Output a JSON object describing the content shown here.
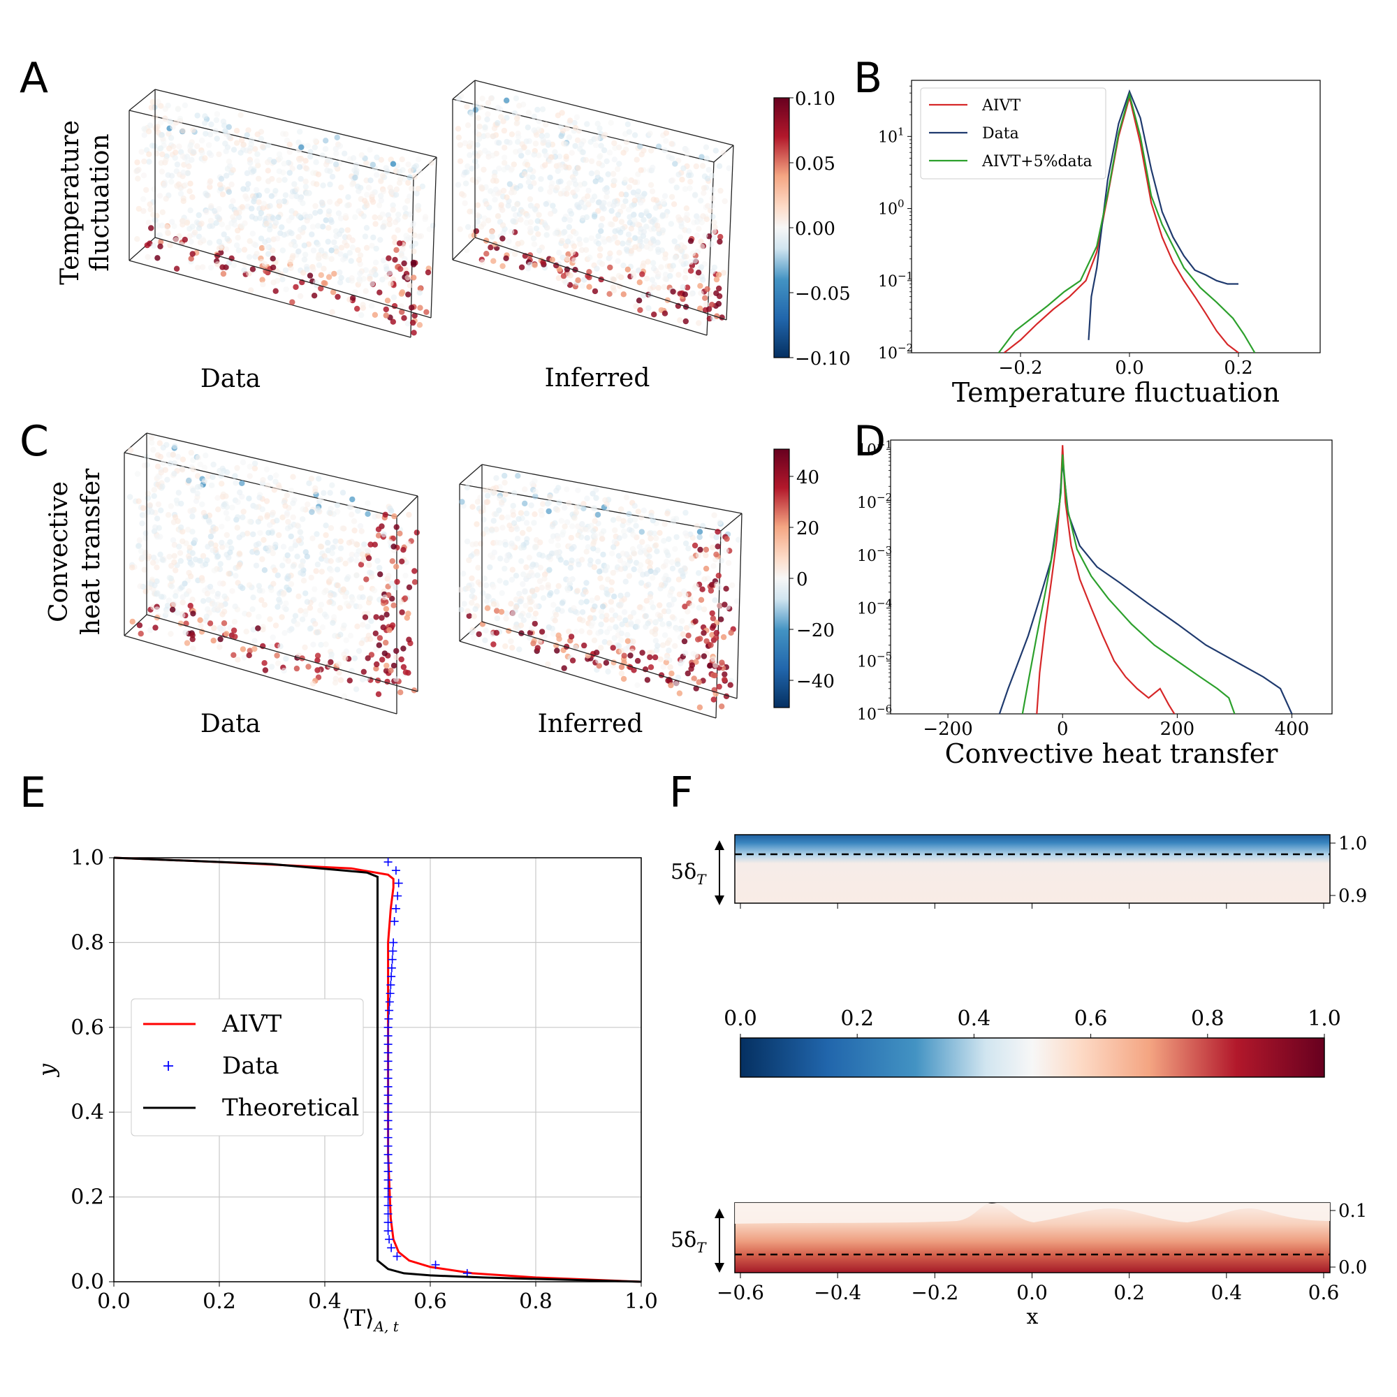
{
  "panels": {
    "a": "A",
    "b": "B",
    "c": "C",
    "d": "D",
    "e": "E",
    "f": "F"
  },
  "panel_A": {
    "row_label_1": "Temperature",
    "row_label_2": "fluctuation",
    "left_caption": "Data",
    "right_caption": "Inferred",
    "colorbar_ticks": [
      "0.10",
      "0.05",
      "0.00",
      "−0.05",
      "−0.10"
    ]
  },
  "panel_C": {
    "row_label_1": "Convective",
    "row_label_2": "heat transfer",
    "left_caption": "Data",
    "right_caption": "Inferred",
    "colorbar_ticks": [
      "40",
      "20",
      "0",
      "−20",
      "−40"
    ]
  },
  "panel_F": {
    "delta_label": "5δ",
    "delta_sub": "T",
    "top_right_ticks": [
      "1.0",
      "0.9"
    ],
    "bottom_right_ticks": [
      "0.1",
      "0.0"
    ],
    "colorbar_ticks": [
      "0.0",
      "0.2",
      "0.4",
      "0.6",
      "0.8",
      "1.0"
    ],
    "x_ticks": [
      "−0.6",
      "−0.4",
      "−0.2",
      "0.0",
      "0.2",
      "0.4",
      "0.6"
    ],
    "xlabel": "x"
  },
  "colors": {
    "aivt": "#d62728",
    "data": "#1f3a6e",
    "aivt5": "#2ca02c",
    "e_aivt": "#ff0000",
    "e_data": "#0000ff",
    "e_theory": "#000000"
  },
  "chart_data": [
    {
      "id": "B",
      "type": "line",
      "xlabel": "Temperature fluctuation",
      "ylabel": "",
      "yscale": "log",
      "xlim": [
        -0.4,
        0.35
      ],
      "ylim": [
        0.01,
        60
      ],
      "x_ticks": [
        -0.2,
        0.0,
        0.2
      ],
      "x_tick_labels": [
        "−0.2",
        "0.0",
        "0.2"
      ],
      "y_ticks": [
        0.01,
        0.1,
        1,
        10
      ],
      "y_tick_base": [
        "10",
        "10",
        "10",
        "10"
      ],
      "y_tick_exp": [
        "−2",
        "−1",
        "0",
        "1"
      ],
      "legend": [
        "AIVT",
        "Data",
        "AIVT+5%data"
      ],
      "series": [
        {
          "name": "AIVT",
          "x": [
            -0.23,
            -0.2,
            -0.17,
            -0.14,
            -0.11,
            -0.08,
            -0.06,
            -0.04,
            -0.02,
            0.0,
            0.02,
            0.04,
            0.06,
            0.08,
            0.1,
            0.12,
            0.14,
            0.16,
            0.18,
            0.2
          ],
          "y": [
            0.01,
            0.015,
            0.025,
            0.04,
            0.06,
            0.1,
            0.25,
            1.5,
            10,
            35,
            8,
            1.2,
            0.4,
            0.18,
            0.1,
            0.06,
            0.035,
            0.02,
            0.013,
            0.01
          ]
        },
        {
          "name": "Data",
          "x": [
            -0.075,
            -0.07,
            -0.06,
            -0.04,
            -0.02,
            0.0,
            0.02,
            0.04,
            0.06,
            0.08,
            0.1,
            0.12,
            0.14,
            0.16,
            0.18,
            0.2
          ],
          "y": [
            0.015,
            0.06,
            0.15,
            2.5,
            15,
            42,
            18,
            3.5,
            0.9,
            0.4,
            0.22,
            0.14,
            0.12,
            0.1,
            0.09,
            0.09
          ]
        },
        {
          "name": "AIVT+5%data",
          "x": [
            -0.24,
            -0.21,
            -0.18,
            -0.15,
            -0.12,
            -0.09,
            -0.06,
            -0.04,
            -0.02,
            0.0,
            0.02,
            0.04,
            0.06,
            0.08,
            0.1,
            0.13,
            0.16,
            0.19,
            0.21,
            0.23
          ],
          "y": [
            0.01,
            0.02,
            0.03,
            0.045,
            0.07,
            0.1,
            0.3,
            1.6,
            11,
            38,
            10,
            1.5,
            0.6,
            0.3,
            0.15,
            0.08,
            0.05,
            0.03,
            0.018,
            0.01
          ]
        }
      ]
    },
    {
      "id": "D",
      "type": "line",
      "xlabel": "Convective heat transfer",
      "ylabel": "",
      "yscale": "log",
      "xlim": [
        -300,
        470
      ],
      "ylim": [
        1e-06,
        0.15
      ],
      "x_ticks": [
        -200,
        0,
        200,
        400
      ],
      "x_tick_labels": [
        "−200",
        "0",
        "200",
        "400"
      ],
      "y_ticks": [
        1e-06,
        1e-05,
        0.0001,
        0.001,
        0.01,
        0.1
      ],
      "y_tick_base": [
        "10",
        "10",
        "10",
        "10",
        "10",
        "10"
      ],
      "y_tick_exp": [
        "−6",
        "−5",
        "−4",
        "−3",
        "−2",
        "−1"
      ],
      "series": [
        {
          "name": "AIVT",
          "x": [
            -45,
            -40,
            -30,
            -20,
            -10,
            -3,
            0,
            5,
            15,
            30,
            50,
            70,
            90,
            110,
            130,
            150,
            170,
            185,
            195
          ],
          "y": [
            1e-06,
            6e-06,
            5e-05,
            0.0003,
            0.002,
            0.02,
            0.12,
            0.01,
            0.0015,
            0.00035,
            0.0001,
            3e-05,
            1e-05,
            5e-06,
            3e-06,
            2e-06,
            3e-06,
            1.5e-06,
            1e-06
          ]
        },
        {
          "name": "Data",
          "x": [
            -110,
            -95,
            -80,
            -60,
            -40,
            -20,
            -5,
            0,
            10,
            30,
            60,
            100,
            150,
            200,
            250,
            300,
            350,
            380,
            400
          ],
          "y": [
            1e-06,
            3e-06,
            8e-06,
            3e-05,
            0.00015,
            0.0008,
            0.01,
            0.06,
            0.006,
            0.0015,
            0.0006,
            0.0003,
            0.00012,
            5e-05,
            2e-05,
            1e-05,
            5e-06,
            3e-06,
            1e-06
          ]
        },
        {
          "name": "AIVT+5%data",
          "x": [
            -70,
            -60,
            -45,
            -30,
            -15,
            -3,
            0,
            8,
            25,
            50,
            80,
            120,
            160,
            200,
            240,
            270,
            290,
            300
          ],
          "y": [
            1e-06,
            4e-06,
            3e-05,
            0.0002,
            0.0015,
            0.015,
            0.08,
            0.008,
            0.0013,
            0.0004,
            0.00015,
            5e-05,
            2e-05,
            1e-05,
            5e-06,
            3e-06,
            2e-06,
            1e-06
          ]
        }
      ]
    },
    {
      "id": "E",
      "type": "line",
      "xlabel": "⟨T⟩",
      "xlabel_sub": "A, t",
      "ylabel": "y",
      "xlim": [
        0,
        1
      ],
      "ylim": [
        0,
        1
      ],
      "x_ticks": [
        0.0,
        0.2,
        0.4,
        0.6,
        0.8,
        1.0
      ],
      "x_tick_labels": [
        "0.0",
        "0.2",
        "0.4",
        "0.6",
        "0.8",
        "1.0"
      ],
      "y_ticks": [
        0.0,
        0.2,
        0.4,
        0.6,
        0.8,
        1.0
      ],
      "y_tick_labels": [
        "0.0",
        "0.2",
        "0.4",
        "0.6",
        "0.8",
        "1.0"
      ],
      "legend": [
        "AIVT",
        "Data",
        "Theoretical"
      ],
      "series": [
        {
          "name": "AIVT",
          "x": [
            1.0,
            0.8,
            0.68,
            0.6,
            0.56,
            0.54,
            0.53,
            0.525,
            0.52,
            0.52,
            0.52,
            0.52,
            0.525,
            0.53,
            0.53,
            0.52,
            0.45,
            0.2,
            0.0
          ],
          "y": [
            0.0,
            0.01,
            0.02,
            0.035,
            0.05,
            0.07,
            0.1,
            0.15,
            0.3,
            0.5,
            0.7,
            0.8,
            0.88,
            0.93,
            0.95,
            0.96,
            0.975,
            0.99,
            1.0
          ]
        },
        {
          "name": "Data",
          "x": [
            0.67,
            0.61,
            0.537,
            0.526,
            0.522,
            0.52,
            0.52,
            0.52,
            0.52,
            0.52,
            0.52,
            0.52,
            0.52,
            0.52,
            0.52,
            0.52,
            0.52,
            0.52,
            0.52,
            0.52,
            0.52,
            0.52,
            0.52,
            0.52,
            0.52,
            0.52,
            0.52,
            0.52,
            0.52,
            0.52,
            0.521,
            0.522,
            0.523,
            0.524,
            0.525,
            0.526,
            0.527,
            0.528,
            0.529,
            0.53,
            0.532,
            0.535,
            0.538,
            0.54,
            0.535,
            0.52
          ],
          "y": [
            0.02,
            0.04,
            0.06,
            0.08,
            0.1,
            0.12,
            0.14,
            0.16,
            0.18,
            0.2,
            0.22,
            0.24,
            0.26,
            0.28,
            0.3,
            0.32,
            0.34,
            0.36,
            0.38,
            0.4,
            0.42,
            0.44,
            0.46,
            0.48,
            0.5,
            0.52,
            0.54,
            0.56,
            0.58,
            0.6,
            0.62,
            0.64,
            0.66,
            0.68,
            0.7,
            0.72,
            0.74,
            0.76,
            0.78,
            0.8,
            0.85,
            0.88,
            0.91,
            0.94,
            0.97,
            0.99
          ]
        },
        {
          "name": "Theoretical",
          "x": [
            1.0,
            0.7,
            0.6,
            0.55,
            0.52,
            0.5,
            0.5,
            0.5,
            0.5,
            0.5,
            0.48,
            0.3,
            0.0
          ],
          "y": [
            0.0,
            0.01,
            0.015,
            0.02,
            0.03,
            0.05,
            0.07,
            0.5,
            0.95,
            0.955,
            0.965,
            0.985,
            1.0
          ]
        }
      ]
    }
  ]
}
